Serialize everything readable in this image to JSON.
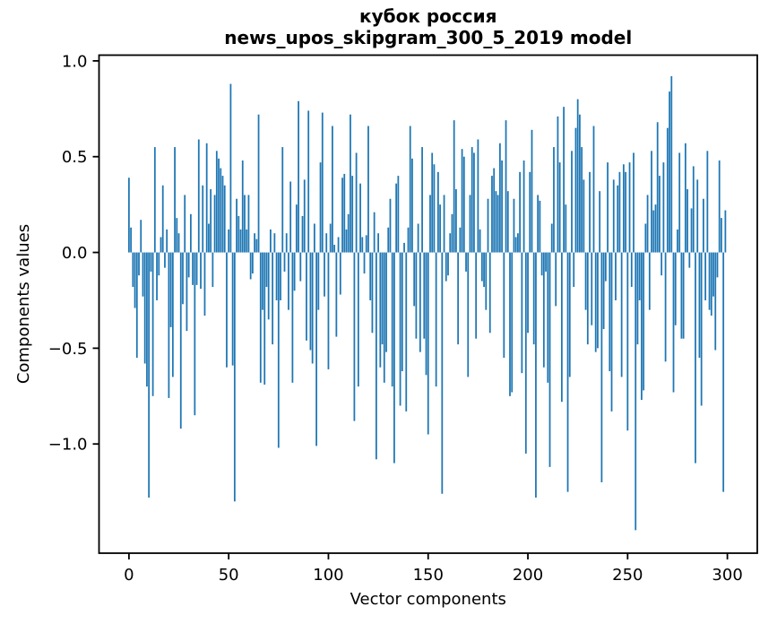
{
  "chart_data": {
    "type": "bar",
    "title_lines": [
      "кубок россия",
      "news_upos_skipgram_300_5_2019 model"
    ],
    "xlabel": "Vector components",
    "ylabel": "Components values",
    "bar_color": "#1f77b4",
    "background_color": "#ffffff",
    "grid": false,
    "legend": "none",
    "xlim": [
      -15,
      315
    ],
    "ylim": [
      -1.57,
      1.03
    ],
    "x_ticks": {
      "values": [
        0,
        50,
        100,
        150,
        200,
        250,
        300
      ],
      "labels": [
        "0",
        "50",
        "100",
        "150",
        "200",
        "250",
        "300"
      ]
    },
    "y_ticks": {
      "values": [
        1.0,
        0.5,
        0.0,
        -0.5,
        -1.0
      ],
      "labels": [
        "1.0",
        "0.5",
        "0.0",
        "−0.5",
        "−1.0"
      ]
    },
    "x_start": 0,
    "values": [
      0.39,
      0.13,
      -0.18,
      -0.29,
      -0.55,
      -0.12,
      0.17,
      -0.23,
      -0.58,
      -0.7,
      -1.28,
      -0.1,
      -0.75,
      0.55,
      -0.25,
      -0.12,
      0.08,
      0.35,
      -0.08,
      0.12,
      -0.76,
      -0.39,
      -0.65,
      0.55,
      0.18,
      0.1,
      -0.92,
      -0.27,
      0.3,
      -0.41,
      -0.13,
      0.2,
      -0.17,
      -0.85,
      -0.17,
      0.59,
      -0.19,
      0.35,
      -0.33,
      0.57,
      0.15,
      0.33,
      -0.18,
      0.3,
      0.53,
      0.49,
      0.44,
      0.4,
      0.35,
      -0.6,
      0.12,
      0.88,
      -0.59,
      -1.3,
      0.28,
      0.19,
      0.12,
      0.48,
      0.3,
      0.12,
      0.3,
      -0.14,
      -0.11,
      0.1,
      0.07,
      0.72,
      -0.68,
      -0.3,
      -0.69,
      -0.18,
      -0.35,
      0.12,
      -0.48,
      0.1,
      -0.25,
      -1.02,
      -0.25,
      0.55,
      -0.1,
      0.1,
      -0.3,
      0.37,
      -0.68,
      -0.2,
      0.25,
      0.79,
      -0.15,
      0.19,
      0.38,
      -0.46,
      0.74,
      -0.51,
      -0.58,
      0.15,
      -1.01,
      -0.3,
      0.47,
      0.73,
      -0.23,
      0.1,
      -0.61,
      0.15,
      0.66,
      0.04,
      -0.44,
      0.08,
      -0.22,
      0.39,
      0.41,
      0.12,
      0.2,
      0.72,
      0.4,
      -0.88,
      0.52,
      -0.7,
      0.36,
      0.08,
      -0.11,
      0.09,
      0.66,
      -0.25,
      -0.42,
      0.21,
      -1.08,
      0.1,
      -0.6,
      -0.48,
      -0.68,
      -0.52,
      0.13,
      0.28,
      -0.7,
      -1.1,
      0.36,
      0.4,
      -0.8,
      -0.62,
      0.05,
      -0.83,
      0.13,
      0.66,
      0.49,
      -0.28,
      -0.45,
      0.15,
      -0.52,
      0.55,
      -0.45,
      -0.64,
      -0.95,
      0.3,
      0.52,
      0.46,
      -0.7,
      0.42,
      0.25,
      -1.26,
      0.3,
      -0.15,
      -0.12,
      0.1,
      0.2,
      0.69,
      0.33,
      -0.48,
      0.13,
      0.54,
      0.5,
      -0.1,
      -0.65,
      0.3,
      0.55,
      0.52,
      -0.45,
      0.59,
      0.12,
      -0.15,
      -0.18,
      -0.3,
      0.28,
      -0.42,
      0.4,
      0.44,
      0.32,
      0.3,
      0.57,
      0.48,
      -0.55,
      0.69,
      0.32,
      -0.75,
      -0.73,
      0.28,
      0.08,
      0.1,
      0.42,
      -0.63,
      0.48,
      -1.05,
      -0.42,
      0.42,
      0.64,
      -0.48,
      -1.28,
      0.3,
      0.27,
      -0.12,
      -0.6,
      -0.1,
      -0.68,
      -1.12,
      0.15,
      0.55,
      -0.28,
      0.71,
      0.47,
      -0.78,
      0.76,
      0.25,
      -1.25,
      -0.65,
      0.53,
      -0.18,
      0.65,
      0.8,
      0.72,
      0.55,
      0.38,
      -0.3,
      -0.48,
      0.42,
      -0.38,
      0.66,
      -0.52,
      -0.5,
      0.32,
      -1.2,
      -0.4,
      -0.15,
      0.47,
      -0.62,
      -0.83,
      0.38,
      -0.25,
      0.35,
      0.42,
      -0.65,
      0.46,
      0.42,
      -0.93,
      0.47,
      -0.18,
      0.52,
      -1.45,
      -0.48,
      -0.25,
      -0.77,
      -0.72,
      0.15,
      0.3,
      -0.3,
      0.53,
      0.22,
      0.25,
      0.68,
      0.4,
      -0.12,
      0.47,
      -0.57,
      0.65,
      0.84,
      0.92,
      -0.73,
      -0.38,
      0.12,
      0.52,
      -0.45,
      -0.45,
      0.57,
      0.33,
      -0.08,
      0.23,
      0.45,
      -1.1,
      0.38,
      -0.55,
      -0.8,
      0.28,
      -0.25,
      0.53,
      -0.3,
      -0.33,
      -0.23,
      -0.51,
      -0.13,
      0.48,
      0.18,
      -1.25,
      0.22
    ]
  }
}
